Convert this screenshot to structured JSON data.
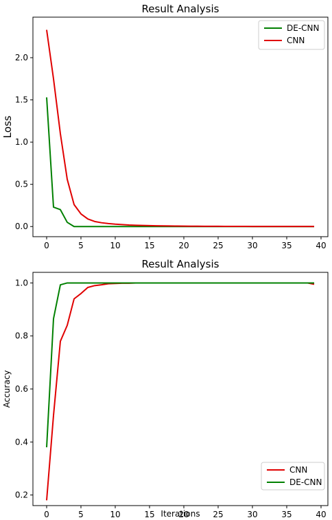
{
  "chart_data": [
    {
      "type": "line",
      "title": "Result Analysis",
      "xlabel": "",
      "ylabel": "Loss",
      "xlim": [
        -2,
        41
      ],
      "ylim": [
        -0.12,
        2.48
      ],
      "xticks": [
        0,
        5,
        10,
        15,
        20,
        25,
        30,
        35,
        40
      ],
      "yticks": [
        0.0,
        0.5,
        1.0,
        1.5,
        2.0
      ],
      "legend_position": "top-right",
      "series": [
        {
          "name": "DE-CNN",
          "color": "#008000",
          "x": [
            0,
            1,
            2,
            3,
            4,
            5,
            6,
            7,
            8,
            9,
            10,
            11,
            12,
            13,
            14,
            15,
            16,
            17,
            18,
            19,
            20,
            21,
            22,
            23,
            24,
            25,
            26,
            27,
            28,
            29,
            30,
            31,
            32,
            33,
            34,
            35,
            36,
            37,
            38,
            39
          ],
          "y": [
            1.53,
            0.23,
            0.2,
            0.05,
            0.0,
            0.0,
            0.0,
            0.0,
            0.0,
            0.0,
            0.0,
            0.0,
            0.0,
            0.0,
            0.0,
            0.0,
            0.0,
            0.0,
            0.0,
            0.0,
            0.0,
            0.0,
            0.0,
            0.0,
            0.0,
            0.0,
            0.0,
            0.0,
            0.0,
            0.0,
            0.0,
            0.0,
            0.0,
            0.0,
            0.0,
            0.0,
            0.0,
            0.0,
            0.0,
            0.0
          ]
        },
        {
          "name": "CNN",
          "color": "#e00000",
          "x": [
            0,
            1,
            2,
            3,
            4,
            5,
            6,
            7,
            8,
            9,
            10,
            11,
            12,
            13,
            14,
            15,
            16,
            17,
            18,
            19,
            20,
            21,
            22,
            23,
            24,
            25,
            26,
            27,
            28,
            29,
            30,
            31,
            32,
            33,
            34,
            35,
            36,
            37,
            38,
            39
          ],
          "y": [
            2.33,
            1.75,
            1.1,
            0.56,
            0.26,
            0.15,
            0.09,
            0.06,
            0.045,
            0.035,
            0.028,
            0.023,
            0.018,
            0.015,
            0.013,
            0.011,
            0.009,
            0.008,
            0.007,
            0.006,
            0.005,
            0.004,
            0.004,
            0.003,
            0.003,
            0.003,
            0.002,
            0.002,
            0.002,
            0.002,
            0.001,
            0.001,
            0.001,
            0.001,
            0.001,
            0.001,
            0.001,
            0.001,
            0.001,
            0.001
          ]
        }
      ]
    },
    {
      "type": "line",
      "title": "Result Analysis",
      "xlabel": "Iterations",
      "ylabel": "Accuracy",
      "xlim": [
        -2,
        41
      ],
      "ylim": [
        0.16,
        1.04
      ],
      "xticks": [
        0,
        5,
        10,
        15,
        20,
        25,
        30,
        35,
        40
      ],
      "yticks": [
        0.2,
        0.4,
        0.6,
        0.8,
        1.0
      ],
      "legend_position": "bottom-right",
      "series": [
        {
          "name": "CNN",
          "color": "#e00000",
          "x": [
            0,
            1,
            2,
            3,
            4,
            5,
            6,
            7,
            8,
            9,
            10,
            11,
            12,
            13,
            14,
            15,
            16,
            17,
            18,
            19,
            20,
            21,
            22,
            23,
            24,
            25,
            26,
            27,
            28,
            29,
            30,
            31,
            32,
            33,
            34,
            35,
            36,
            37,
            38,
            39
          ],
          "y": [
            0.18,
            0.5,
            0.78,
            0.84,
            0.94,
            0.96,
            0.983,
            0.99,
            0.993,
            0.997,
            0.998,
            0.999,
            0.999,
            1.0,
            1.0,
            1.0,
            1.0,
            1.0,
            1.0,
            1.0,
            1.0,
            1.0,
            1.0,
            1.0,
            1.0,
            1.0,
            1.0,
            1.0,
            1.0,
            1.0,
            1.0,
            1.0,
            1.0,
            1.0,
            1.0,
            1.0,
            1.0,
            1.0,
            1.0,
            0.995
          ]
        },
        {
          "name": "DE-CNN",
          "color": "#008000",
          "x": [
            0,
            1,
            2,
            3,
            4,
            5,
            6,
            7,
            8,
            9,
            10,
            11,
            12,
            13,
            14,
            15,
            16,
            17,
            18,
            19,
            20,
            21,
            22,
            23,
            24,
            25,
            26,
            27,
            28,
            29,
            30,
            31,
            32,
            33,
            34,
            35,
            36,
            37,
            38,
            39
          ],
          "y": [
            0.38,
            0.865,
            0.993,
            1.0,
            1.0,
            1.0,
            1.0,
            1.0,
            1.0,
            1.0,
            1.0,
            1.0,
            1.0,
            1.0,
            1.0,
            1.0,
            1.0,
            1.0,
            1.0,
            1.0,
            1.0,
            1.0,
            1.0,
            1.0,
            1.0,
            1.0,
            1.0,
            1.0,
            1.0,
            1.0,
            1.0,
            1.0,
            1.0,
            1.0,
            1.0,
            1.0,
            1.0,
            1.0,
            1.0,
            1.0
          ]
        }
      ]
    }
  ]
}
